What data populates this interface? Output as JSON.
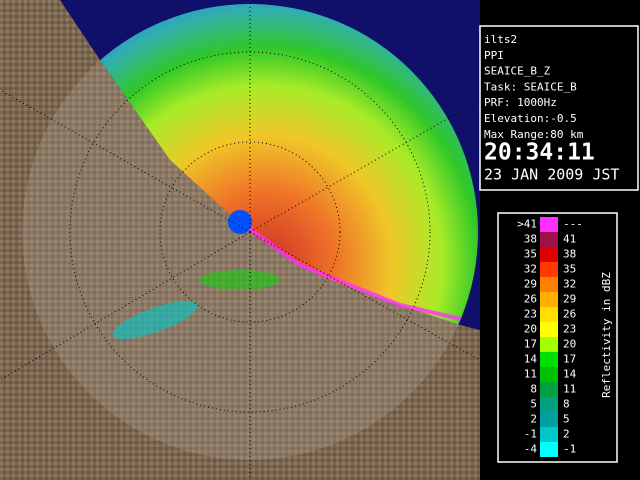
{
  "info": {
    "lines": [
      "ilts2",
      "PPI",
      "SEAICE_B_Z",
      "Task: SEAICE_B",
      "PRF: 1000Hz",
      "Elevation:-0.5",
      "Max Range:80 km"
    ],
    "time": "20:34:11",
    "date": "23 JAN 2009 JST"
  },
  "legend": {
    "title": "Reflectivity in dBZ",
    "rows": [
      {
        "low": ">41",
        "high": "---",
        "color": "#ff30ff"
      },
      {
        "low": "38",
        "high": "41",
        "color": "#a0104a"
      },
      {
        "low": "35",
        "high": "38",
        "color": "#e00000"
      },
      {
        "low": "32",
        "high": "35",
        "color": "#ff3a00"
      },
      {
        "low": "29",
        "high": "32",
        "color": "#ff8000"
      },
      {
        "low": "26",
        "high": "29",
        "color": "#ffb000"
      },
      {
        "low": "23",
        "high": "26",
        "color": "#ffe000"
      },
      {
        "low": "20",
        "high": "23",
        "color": "#ffff00"
      },
      {
        "low": "17",
        "high": "20",
        "color": "#a0ff00"
      },
      {
        "low": "14",
        "high": "17",
        "color": "#00e000"
      },
      {
        "low": "11",
        "high": "14",
        "color": "#00c000"
      },
      {
        "low": "8",
        "high": "11",
        "color": "#00a040"
      },
      {
        "low": "5",
        "high": "8",
        "color": "#00a080"
      },
      {
        "low": "2",
        "high": "5",
        "color": "#00a0a0"
      },
      {
        "low": "-1",
        "high": "2",
        "color": "#00c8c8"
      },
      {
        "low": "-4",
        "high": "-1",
        "color": "#00ffff"
      }
    ]
  }
}
